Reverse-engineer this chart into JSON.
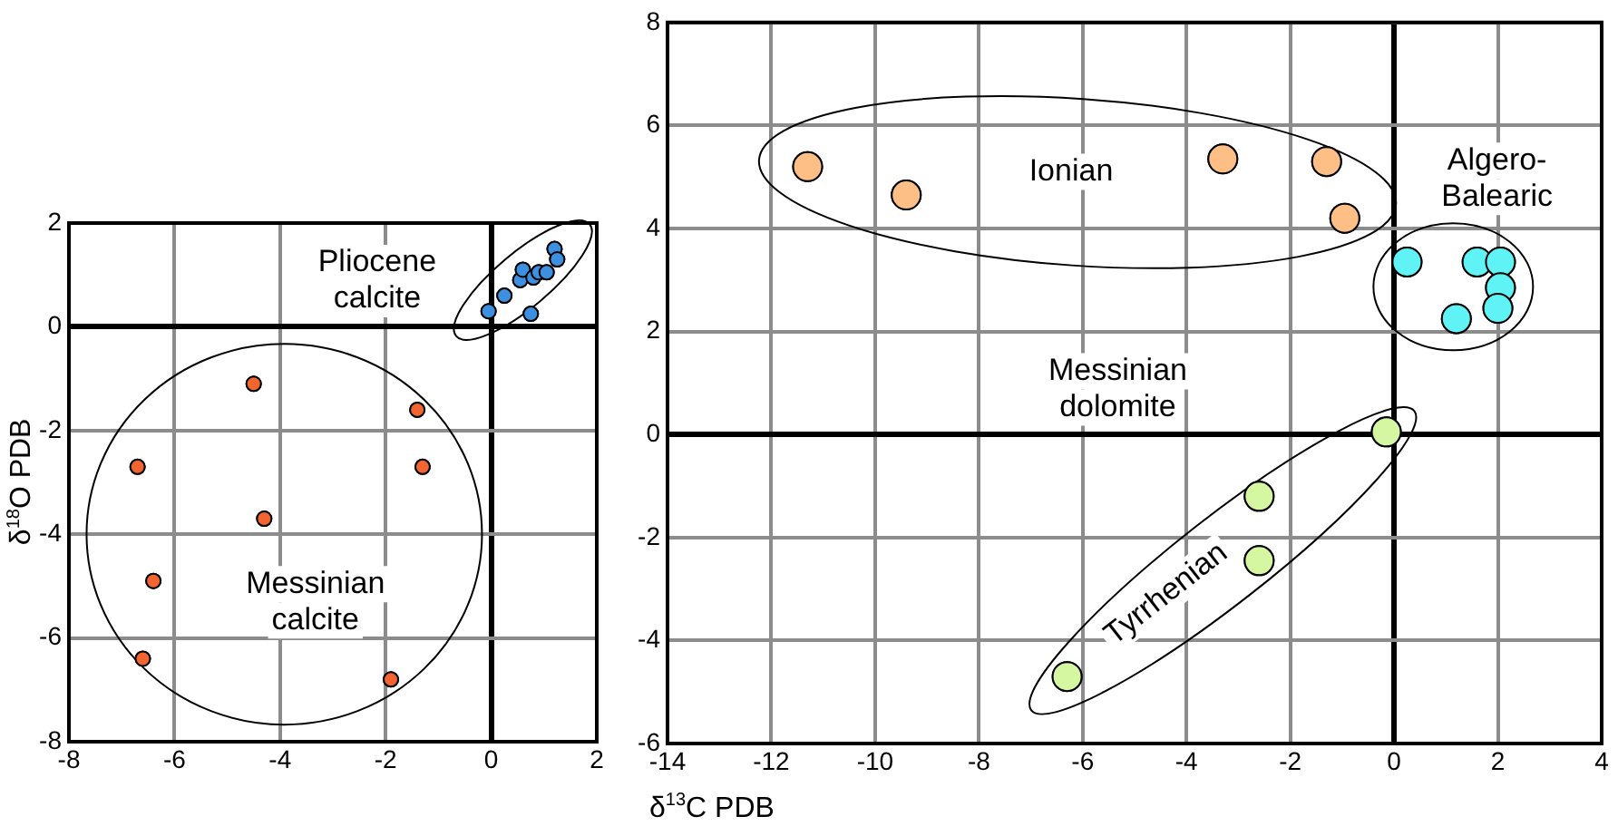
{
  "chart_data": [
    {
      "type": "scatter",
      "ylabel": "δ$^{18}$O PDB",
      "xlim": [
        -8,
        2
      ],
      "ylim": [
        -8,
        2
      ],
      "xticks": [
        -8,
        -6,
        -4,
        -2,
        0,
        2
      ],
      "yticks": [
        -8,
        -6,
        -4,
        -2,
        0,
        2
      ],
      "grid": true,
      "legend": false,
      "marker": "circle",
      "annotations": [
        "Pliocene\ncalcite",
        "Messinian\ncalcite"
      ],
      "series": [
        {
          "color": "#f26430",
          "x": [
            -4.5,
            -1.4,
            -1.3,
            -6.7,
            -4.3,
            -6.4,
            -6.6,
            -1.9
          ],
          "values": [
            -1.1,
            -1.6,
            -2.7,
            -2.7,
            -3.7,
            -4.9,
            -6.4,
            -6.8
          ]
        },
        {
          "color": "#3d8fe0",
          "x": [
            -0.05,
            0.25,
            0.55,
            0.6,
            0.8,
            0.9,
            1.05,
            1.2,
            1.25,
            0.75
          ],
          "values": [
            0.3,
            0.6,
            0.9,
            1.1,
            0.95,
            1.05,
            1.05,
            1.5,
            1.3,
            0.25
          ]
        }
      ]
    },
    {
      "type": "scatter",
      "xlabel": "δ$^{13}$C PDB",
      "xlim": [
        -14,
        4
      ],
      "ylim": [
        -6,
        8
      ],
      "xticks": [
        -14,
        -12,
        -10,
        -8,
        -6,
        -4,
        -2,
        0,
        2,
        4
      ],
      "yticks": [
        -6,
        -4,
        -2,
        0,
        2,
        4,
        6,
        8
      ],
      "grid": true,
      "legend": false,
      "marker": "circle",
      "annotations": [
        "Ionian",
        "Algero-\nBalearic",
        "Messinian\ndolomite",
        "Tyrrhenian"
      ],
      "series": [
        {
          "color": "#fdbf85",
          "x": [
            -11.3,
            -9.4,
            -3.3,
            -1.3,
            -0.95
          ],
          "values": [
            5.2,
            4.65,
            5.35,
            5.3,
            4.2
          ]
        },
        {
          "color": "#5ff3f5",
          "x": [
            0.25,
            1.6,
            2.05,
            2.05,
            2,
            1.2
          ],
          "values": [
            3.35,
            3.35,
            3.35,
            2.85,
            2.45,
            2.25
          ]
        },
        {
          "color": "#d6f7a2",
          "x": [
            -0.15,
            -2.6,
            -2.6,
            -6.3
          ],
          "values": [
            0.05,
            -1.2,
            -2.45,
            -4.7
          ]
        }
      ]
    }
  ]
}
